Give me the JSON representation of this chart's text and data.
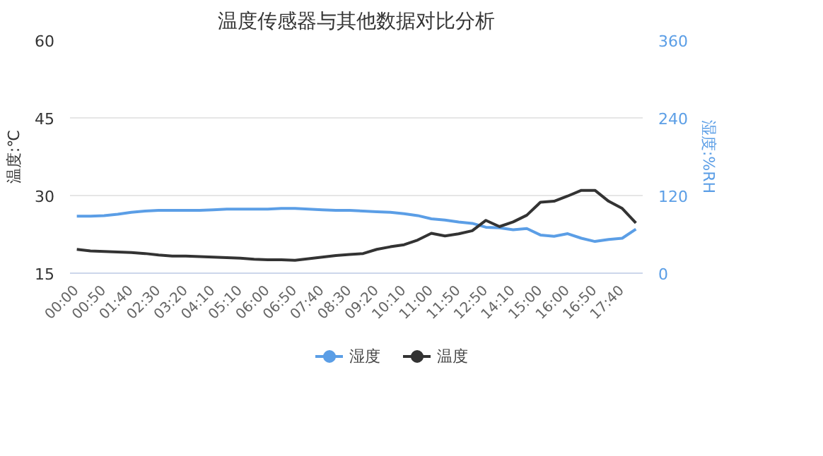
{
  "chart_data": {
    "type": "line",
    "title": "温度传感器与其他数据对比分析",
    "ylabel": "温度:℃",
    "y2label": "湿度:%RH",
    "categories": [
      "00:00",
      null,
      "00:50",
      null,
      "01:40",
      null,
      "02:30",
      null,
      "03:20",
      null,
      "04:10",
      null,
      "05:10",
      null,
      "06:00",
      null,
      "06:50",
      null,
      "07:40",
      null,
      "08:30",
      null,
      "09:20",
      null,
      "10:10",
      null,
      "11:00",
      null,
      "11:50",
      null,
      "12:50",
      null,
      "14:10",
      null,
      "15:00",
      null,
      "16:00",
      null,
      "16:50",
      null,
      "17:40",
      null
    ],
    "series": [
      {
        "name": "湿度",
        "color": "#5b9ee6",
        "axis": "y2",
        "values": [
          88,
          88,
          89,
          91,
          94,
          96,
          97,
          97,
          97,
          97,
          98,
          99,
          99,
          99,
          99,
          100,
          100,
          99,
          98,
          97,
          97,
          96,
          95,
          94,
          92,
          89,
          84,
          82,
          79,
          77,
          71,
          70,
          67,
          69,
          59,
          57,
          61,
          54,
          49,
          52,
          54,
          68
        ]
      },
      {
        "name": "温度",
        "color": "#333333",
        "values": [
          19.6,
          19.3,
          19.2,
          19.1,
          19.0,
          18.8,
          18.5,
          18.3,
          18.3,
          18.2,
          18.1,
          18.0,
          17.9,
          17.7,
          17.6,
          17.6,
          17.5,
          17.8,
          18.1,
          18.4,
          18.6,
          18.8,
          19.6,
          20.1,
          20.5,
          21.4,
          22.7,
          22.2,
          22.6,
          23.2,
          25.2,
          24.0,
          24.9,
          26.2,
          28.7,
          28.9,
          29.9,
          31.0,
          31.0,
          28.9,
          27.5,
          24.7
        ]
      }
    ],
    "ylim": [
      15,
      60
    ],
    "yticks": [
      15,
      30,
      45,
      60
    ],
    "y2lim": [
      0,
      360
    ],
    "y2ticks": [
      0,
      120,
      240,
      360
    ],
    "grid": "y",
    "legend": "bottom",
    "marker": "none",
    "line_style": "solid"
  }
}
